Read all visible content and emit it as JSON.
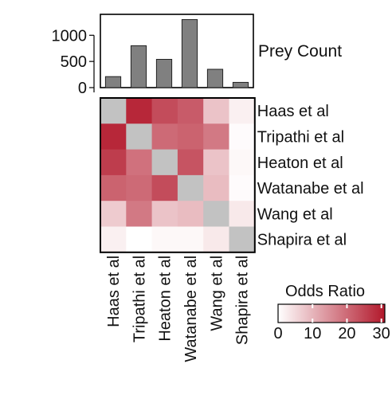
{
  "chart_data": [
    {
      "type": "bar",
      "title": "",
      "ylabel": "Prey Count",
      "ylim": [
        0,
        1400
      ],
      "yticks": [
        0,
        500,
        1000
      ],
      "categories": [
        "Haas et al",
        "Tripathi et al",
        "Heaton et al",
        "Watanabe et al",
        "Wang et al",
        "Shapira et al"
      ],
      "values": [
        210,
        800,
        540,
        1300,
        350,
        100
      ],
      "bar_color": "#808080"
    },
    {
      "type": "heatmap",
      "rows": [
        "Haas et al",
        "Tripathi et al",
        "Heaton et al",
        "Watanabe et al",
        "Wang et al",
        "Shapira et al"
      ],
      "cols": [
        "Haas et al",
        "Tripathi et al",
        "Heaton et al",
        "Watanabe et al",
        "Wang et al",
        "Shapira et al"
      ],
      "values": [
        [
          null,
          29,
          24,
          22,
          8,
          2
        ],
        [
          29,
          null,
          20,
          21,
          18,
          0.5
        ],
        [
          26,
          19,
          null,
          23,
          8,
          1
        ],
        [
          21,
          20,
          24,
          null,
          9,
          0.5
        ],
        [
          7,
          18,
          8,
          9,
          null,
          3
        ],
        [
          2,
          0,
          1,
          1,
          3,
          null
        ]
      ],
      "diagonal_color": "#c2c2c2",
      "legend": {
        "title": "Odds Ratio",
        "min": 0,
        "max": 31,
        "ticks": [
          0,
          10,
          20,
          30
        ],
        "low_color": "#ffffff",
        "high_color": "#b2182b"
      }
    }
  ]
}
